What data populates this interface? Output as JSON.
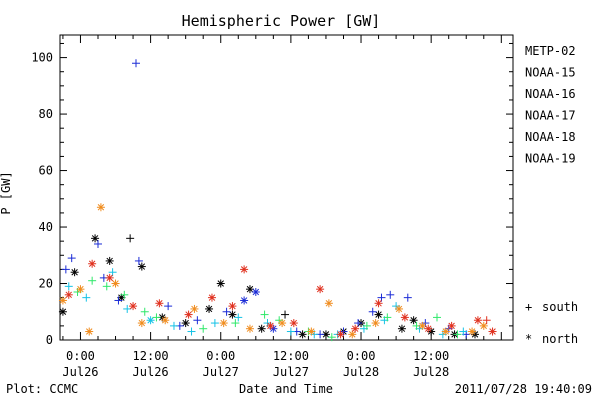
{
  "chart_data": {
    "type": "scatter",
    "title": "Hemispheric Power [GW]",
    "xlabel": "Date and Time",
    "ylabel": "P [GW]",
    "ylim": [
      0,
      108
    ],
    "xlim": [
      "2011-07-25T20:30",
      "2011-07-29T02:00"
    ],
    "y_ticks": [
      "0",
      "20",
      "40",
      "60",
      "80",
      "100"
    ],
    "x_ticks": [
      {
        "time": "0:00",
        "date": "Jul26",
        "t": "2011-07-26T00:00"
      },
      {
        "time": "12:00",
        "date": "Jul26",
        "t": "2011-07-26T12:00"
      },
      {
        "time": "0:00",
        "date": "Jul27",
        "t": "2011-07-27T00:00"
      },
      {
        "time": "12:00",
        "date": "Jul27",
        "t": "2011-07-27T12:00"
      },
      {
        "time": "0:00",
        "date": "Jul28",
        "t": "2011-07-28T00:00"
      },
      {
        "time": "12:00",
        "date": "Jul28",
        "t": "2011-07-28T12:00"
      }
    ],
    "grid": false,
    "legend_position": "right",
    "symbol_legend": {
      "south_symbol": "+",
      "south": "south",
      "north_symbol": "*",
      "north": "north"
    },
    "series": [
      {
        "name": "METP-02",
        "color": "#000000",
        "points": [
          [
            "2011-07-25T21:00",
            10,
            "*"
          ],
          [
            "2011-07-25T23:00",
            24,
            "*"
          ],
          [
            "2011-07-26T02:30",
            36,
            "*"
          ],
          [
            "2011-07-26T05:00",
            28,
            "*"
          ],
          [
            "2011-07-26T07:00",
            15,
            "*"
          ],
          [
            "2011-07-26T08:30",
            36,
            "+"
          ],
          [
            "2011-07-26T10:30",
            26,
            "*"
          ],
          [
            "2011-07-26T14:00",
            8,
            "*"
          ],
          [
            "2011-07-26T18:00",
            6,
            "*"
          ],
          [
            "2011-07-26T22:00",
            11,
            "*"
          ],
          [
            "2011-07-27T00:00",
            20,
            "*"
          ],
          [
            "2011-07-27T02:00",
            9,
            "*"
          ],
          [
            "2011-07-27T05:00",
            18,
            "*"
          ],
          [
            "2011-07-27T07:00",
            4,
            "*"
          ],
          [
            "2011-07-27T11:00",
            9,
            "+"
          ],
          [
            "2011-07-27T14:00",
            2,
            "*"
          ],
          [
            "2011-07-27T18:00",
            2,
            "*"
          ],
          [
            "2011-07-27T21:00",
            3,
            "*"
          ],
          [
            "2011-07-28T00:00",
            6,
            "*"
          ],
          [
            "2011-07-28T03:00",
            9,
            "*"
          ],
          [
            "2011-07-28T07:00",
            4,
            "*"
          ],
          [
            "2011-07-28T09:00",
            7,
            "*"
          ],
          [
            "2011-07-28T12:00",
            3,
            "*"
          ],
          [
            "2011-07-28T16:00",
            2,
            "*"
          ],
          [
            "2011-07-28T19:30",
            2,
            "*"
          ]
        ]
      },
      {
        "name": "NOAA-15",
        "color": "#1a2bd6",
        "points": [
          [
            "2011-07-25T21:30",
            25,
            "+"
          ],
          [
            "2011-07-25T22:30",
            29,
            "+"
          ],
          [
            "2011-07-26T03:00",
            34,
            "+"
          ],
          [
            "2011-07-26T04:00",
            22,
            "+"
          ],
          [
            "2011-07-26T06:30",
            14,
            "+"
          ],
          [
            "2011-07-26T09:30",
            98,
            "+"
          ],
          [
            "2011-07-26T10:00",
            28,
            "+"
          ],
          [
            "2011-07-26T15:00",
            12,
            "+"
          ],
          [
            "2011-07-26T17:00",
            5,
            "+"
          ],
          [
            "2011-07-26T20:00",
            7,
            "+"
          ],
          [
            "2011-07-27T01:00",
            10,
            "+"
          ],
          [
            "2011-07-27T04:00",
            14,
            "*"
          ],
          [
            "2011-07-27T06:00",
            17,
            "*"
          ],
          [
            "2011-07-27T09:00",
            4,
            "*"
          ],
          [
            "2011-07-27T13:00",
            3,
            "+"
          ],
          [
            "2011-07-27T17:00",
            2,
            "+"
          ],
          [
            "2011-07-27T21:00",
            3,
            "+"
          ],
          [
            "2011-07-27T23:30",
            6,
            "+"
          ],
          [
            "2011-07-28T02:00",
            10,
            "+"
          ],
          [
            "2011-07-28T03:30",
            15,
            "+"
          ],
          [
            "2011-07-28T05:00",
            16,
            "+"
          ],
          [
            "2011-07-28T08:00",
            15,
            "+"
          ],
          [
            "2011-07-28T11:00",
            6,
            "+"
          ],
          [
            "2011-07-28T15:00",
            4,
            "+"
          ],
          [
            "2011-07-28T18:00",
            2,
            "+"
          ]
        ]
      },
      {
        "name": "NOAA-16",
        "color": "#14c2e6",
        "points": [
          [
            "2011-07-25T22:00",
            19,
            "+"
          ],
          [
            "2011-07-26T01:00",
            15,
            "+"
          ],
          [
            "2011-07-26T05:30",
            24,
            "+"
          ],
          [
            "2011-07-26T08:00",
            11,
            "+"
          ],
          [
            "2011-07-26T12:00",
            7,
            "*"
          ],
          [
            "2011-07-26T16:00",
            5,
            "+"
          ],
          [
            "2011-07-26T19:00",
            3,
            "+"
          ],
          [
            "2011-07-26T23:00",
            6,
            "+"
          ],
          [
            "2011-07-27T03:00",
            8,
            "+"
          ],
          [
            "2011-07-27T08:00",
            6,
            "+"
          ],
          [
            "2011-07-27T12:00",
            3,
            "+"
          ],
          [
            "2011-07-27T16:00",
            2,
            "+"
          ],
          [
            "2011-07-27T20:00",
            2,
            "+"
          ],
          [
            "2011-07-28T00:30",
            4,
            "+"
          ],
          [
            "2011-07-28T04:00",
            7,
            "+"
          ],
          [
            "2011-07-28T06:00",
            12,
            "+"
          ],
          [
            "2011-07-28T10:00",
            4,
            "+"
          ],
          [
            "2011-07-28T14:00",
            2,
            "+"
          ],
          [
            "2011-07-28T17:30",
            3,
            "+"
          ]
        ]
      },
      {
        "name": "NOAA-17",
        "color": "#2ee86a",
        "points": [
          [
            "2011-07-25T23:30",
            17,
            "+"
          ],
          [
            "2011-07-26T02:00",
            21,
            "+"
          ],
          [
            "2011-07-26T04:30",
            19,
            "+"
          ],
          [
            "2011-07-26T07:30",
            16,
            "+"
          ],
          [
            "2011-07-26T11:00",
            10,
            "+"
          ],
          [
            "2011-07-26T13:00",
            8,
            "+"
          ],
          [
            "2011-07-26T21:00",
            4,
            "+"
          ],
          [
            "2011-07-27T02:30",
            6,
            "+"
          ],
          [
            "2011-07-27T07:30",
            9,
            "+"
          ],
          [
            "2011-07-27T10:00",
            7,
            "+"
          ],
          [
            "2011-07-27T15:00",
            3,
            "+"
          ],
          [
            "2011-07-27T19:00",
            1,
            "+"
          ],
          [
            "2011-07-28T01:00",
            5,
            "+"
          ],
          [
            "2011-07-28T04:30",
            8,
            "+"
          ],
          [
            "2011-07-28T09:30",
            5,
            "+"
          ],
          [
            "2011-07-28T13:00",
            8,
            "+"
          ],
          [
            "2011-07-28T16:30",
            2,
            "+"
          ]
        ]
      },
      {
        "name": "NOAA-18",
        "color": "#f08c1e",
        "points": [
          [
            "2011-07-25T21:00",
            14,
            "*"
          ],
          [
            "2011-07-26T00:00",
            18,
            "*"
          ],
          [
            "2011-07-26T03:30",
            47,
            "*"
          ],
          [
            "2011-07-26T01:30",
            3,
            "*"
          ],
          [
            "2011-07-26T06:00",
            20,
            "*"
          ],
          [
            "2011-07-26T10:30",
            6,
            "*"
          ],
          [
            "2011-07-26T14:30",
            7,
            "*"
          ],
          [
            "2011-07-26T19:30",
            11,
            "*"
          ],
          [
            "2011-07-27T00:30",
            6,
            "*"
          ],
          [
            "2011-07-27T05:00",
            4,
            "*"
          ],
          [
            "2011-07-27T10:30",
            6,
            "*"
          ],
          [
            "2011-07-27T15:30",
            3,
            "*"
          ],
          [
            "2011-07-27T18:30",
            13,
            "*"
          ],
          [
            "2011-07-27T22:30",
            2,
            "*"
          ],
          [
            "2011-07-28T02:30",
            6,
            "*"
          ],
          [
            "2011-07-28T06:30",
            11,
            "*"
          ],
          [
            "2011-07-28T10:30",
            5,
            "*"
          ],
          [
            "2011-07-28T14:30",
            3,
            "*"
          ],
          [
            "2011-07-28T19:00",
            3,
            "*"
          ],
          [
            "2011-07-28T21:00",
            5,
            "*"
          ]
        ]
      },
      {
        "name": "NOAA-19",
        "color": "#e0301e",
        "points": [
          [
            "2011-07-25T22:00",
            16,
            "*"
          ],
          [
            "2011-07-26T02:00",
            27,
            "*"
          ],
          [
            "2011-07-26T05:00",
            22,
            "*"
          ],
          [
            "2011-07-26T09:00",
            12,
            "*"
          ],
          [
            "2011-07-26T13:30",
            13,
            "*"
          ],
          [
            "2011-07-26T18:30",
            9,
            "*"
          ],
          [
            "2011-07-26T22:30",
            15,
            "*"
          ],
          [
            "2011-07-27T02:00",
            12,
            "*"
          ],
          [
            "2011-07-27T04:00",
            25,
            "*"
          ],
          [
            "2011-07-27T08:30",
            5,
            "*"
          ],
          [
            "2011-07-27T12:30",
            6,
            "*"
          ],
          [
            "2011-07-27T17:00",
            18,
            "*"
          ],
          [
            "2011-07-27T20:30",
            2,
            "*"
          ],
          [
            "2011-07-27T23:00",
            4,
            "*"
          ],
          [
            "2011-07-28T03:00",
            13,
            "*"
          ],
          [
            "2011-07-28T07:30",
            8,
            "*"
          ],
          [
            "2011-07-28T11:30",
            4,
            "*"
          ],
          [
            "2011-07-28T15:30",
            5,
            "*"
          ],
          [
            "2011-07-28T20:00",
            7,
            "*"
          ],
          [
            "2011-07-28T21:30",
            7,
            "+"
          ],
          [
            "2011-07-28T22:30",
            3,
            "*"
          ]
        ]
      }
    ]
  },
  "footer": {
    "left": "Plot: CCMC",
    "right": "2011/07/28 19:40:09"
  }
}
